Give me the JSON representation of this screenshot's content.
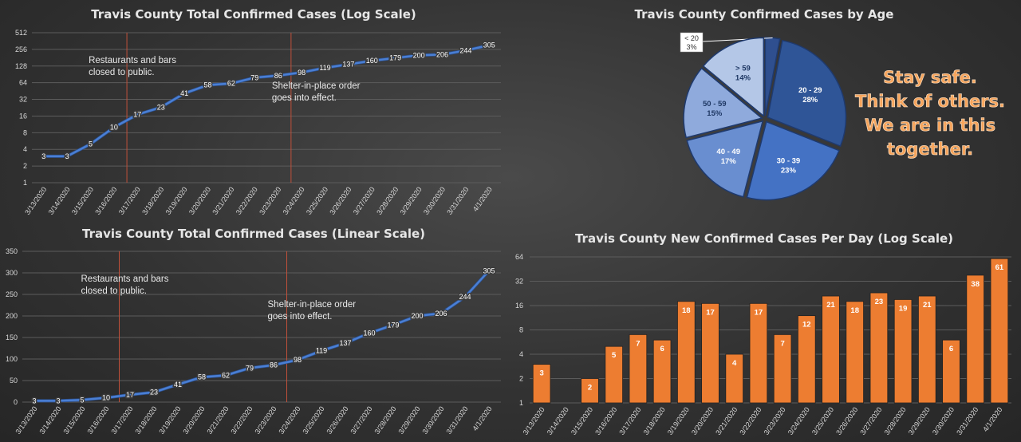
{
  "motto": [
    "Stay safe.",
    "Think of others.",
    "We are in this",
    "together."
  ],
  "colors": {
    "line": "#4a7fd4",
    "bar": "#ed7d31",
    "marker": "#c0503a",
    "grid": "#5c5c5c"
  },
  "chart_data": [
    {
      "type": "line",
      "title": "Travis County Total Confirmed Cases (Log Scale)",
      "yscale": "log2",
      "ylim": [
        1,
        512
      ],
      "yticks": [
        "1",
        "2",
        "4",
        "8",
        "16",
        "32",
        "64",
        "128",
        "256",
        "512"
      ],
      "x": [
        "3/13/2020",
        "3/14/2020",
        "3/15/2020",
        "3/16/2020",
        "3/17/2020",
        "3/18/2020",
        "3/19/2020",
        "3/20/2020",
        "3/21/2020",
        "3/22/2020",
        "3/23/2020",
        "3/24/2020",
        "3/25/2020",
        "3/26/2020",
        "3/27/2020",
        "3/28/2020",
        "3/29/2020",
        "3/30/2020",
        "3/31/2020",
        "4/1/2020"
      ],
      "values": [
        3,
        3,
        5,
        10,
        17,
        23,
        41,
        58,
        62,
        79,
        86,
        98,
        119,
        137,
        160,
        179,
        200,
        206,
        244,
        305
      ],
      "annotations": [
        {
          "x": "3/17/2020",
          "lines": [
            "Restaurants and bars",
            "closed to public."
          ]
        },
        {
          "x": "3/24/2020",
          "lines": [
            "Shelter-in-place order",
            "goes into effect."
          ]
        }
      ]
    },
    {
      "type": "line",
      "title": "Travis County Total Confirmed Cases (Linear Scale)",
      "yscale": "linear",
      "ylim": [
        0,
        350
      ],
      "yticks": [
        "0",
        "50",
        "100",
        "150",
        "200",
        "250",
        "300",
        "350"
      ],
      "x": [
        "3/13/2020",
        "3/14/2020",
        "3/15/2020",
        "3/16/2020",
        "3/17/2020",
        "3/18/2020",
        "3/19/2020",
        "3/20/2020",
        "3/21/2020",
        "3/22/2020",
        "3/23/2020",
        "3/24/2020",
        "3/25/2020",
        "3/26/2020",
        "3/27/2020",
        "3/28/2020",
        "3/29/2020",
        "3/30/2020",
        "3/31/2020",
        "4/1/2020"
      ],
      "values": [
        3,
        3,
        5,
        10,
        17,
        23,
        41,
        58,
        62,
        79,
        86,
        98,
        119,
        137,
        160,
        179,
        200,
        206,
        244,
        305
      ],
      "annotations": [
        {
          "x": "3/17/2020",
          "lines": [
            "Restaurants and bars",
            "closed to public."
          ]
        },
        {
          "x": "3/24/2020",
          "lines": [
            "Shelter-in-place order",
            "goes into effect."
          ]
        }
      ]
    },
    {
      "type": "pie",
      "title": "Travis County Confirmed Cases by Age",
      "slices": [
        {
          "label": "< 20",
          "pct": "3%",
          "value": 3,
          "color": "#2f4f8f"
        },
        {
          "label": "20 - 29",
          "pct": "28%",
          "value": 28,
          "color": "#2f5597"
        },
        {
          "label": "30 - 39",
          "pct": "23%",
          "value": 23,
          "color": "#4472c4"
        },
        {
          "label": "40 - 49",
          "pct": "17%",
          "value": 17,
          "color": "#698ed0"
        },
        {
          "label": "50 - 59",
          "pct": "15%",
          "value": 15,
          "color": "#8faadc"
        },
        {
          "label": "> 59",
          "pct": "14%",
          "value": 14,
          "color": "#b4c7e7"
        }
      ]
    },
    {
      "type": "bar",
      "title": "Travis County New Confirmed Cases Per Day (Log Scale)",
      "yscale": "log2",
      "ylim": [
        1,
        64
      ],
      "yticks": [
        "1",
        "2",
        "4",
        "8",
        "16",
        "32",
        "64"
      ],
      "categories": [
        "3/13/2020",
        "3/14/2020",
        "3/15/2020",
        "3/16/2020",
        "3/17/2020",
        "3/18/2020",
        "3/19/2020",
        "3/20/2020",
        "3/21/2020",
        "3/22/2020",
        "3/23/2020",
        "3/24/2020",
        "3/25/2020",
        "3/26/2020",
        "3/27/2020",
        "3/28/2020",
        "3/29/2020",
        "3/30/2020",
        "3/31/2020",
        "4/1/2020"
      ],
      "values": [
        3,
        null,
        2,
        5,
        7,
        6,
        18,
        17,
        4,
        17,
        7,
        12,
        21,
        18,
        23,
        19,
        21,
        6,
        38,
        61
      ]
    }
  ]
}
